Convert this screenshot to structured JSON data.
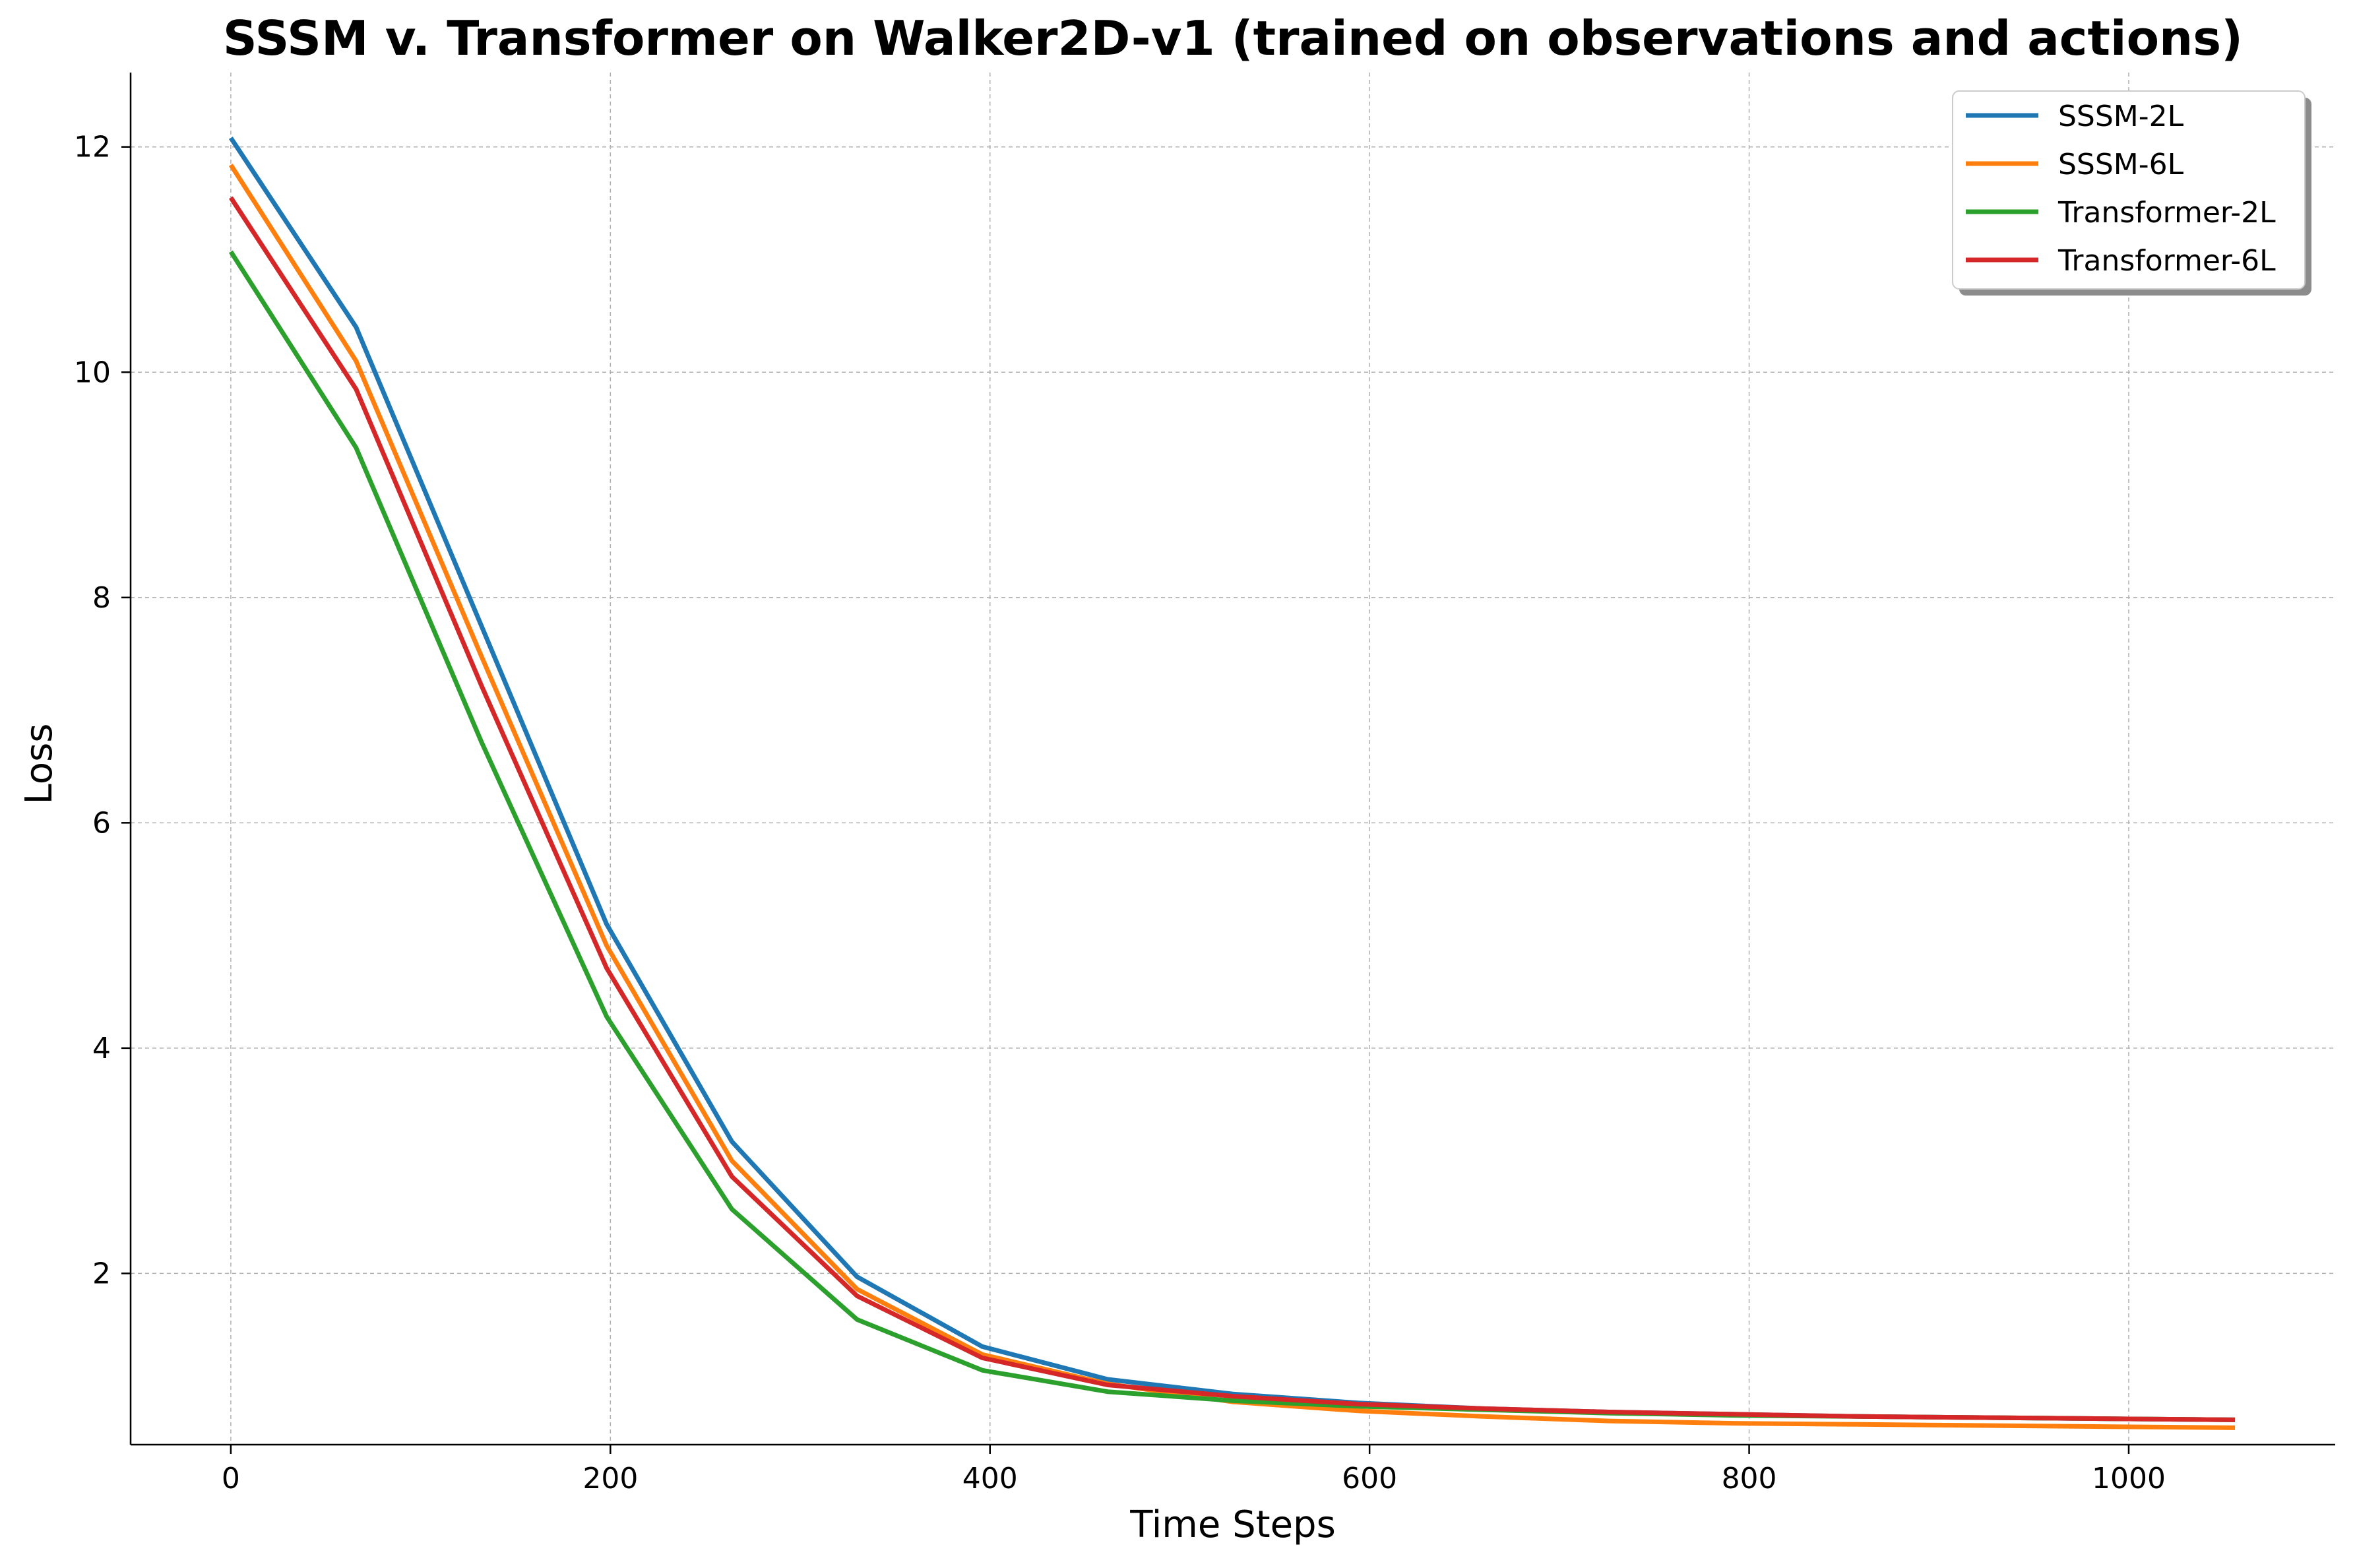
{
  "chart_data": {
    "type": "line",
    "title": "SSSM v. Transformer on Walker2D-v1 (trained on observations and actions)",
    "xlabel": "Time Steps",
    "ylabel": "Loss",
    "xlim": [
      -52.8,
      1108.8
    ],
    "ylim": [
      0.48,
      12.66
    ],
    "xticks": [
      0,
      200,
      400,
      600,
      800,
      1000
    ],
    "yticks": [
      2,
      4,
      6,
      8,
      10,
      12
    ],
    "grid": true,
    "legend_position": "top-right",
    "x": [
      0,
      66,
      132,
      198,
      264,
      330,
      396,
      462,
      528,
      594,
      660,
      726,
      792,
      858,
      924,
      990,
      1056
    ],
    "series": [
      {
        "name": "SSSM-2L",
        "color": "#1f77b4",
        "values": [
          12.08,
          10.4,
          7.75,
          5.1,
          3.17,
          1.97,
          1.35,
          1.06,
          0.93,
          0.85,
          0.8,
          0.77,
          0.75,
          0.73,
          0.72,
          0.71,
          0.7
        ]
      },
      {
        "name": "SSSM-6L",
        "color": "#ff7f0e",
        "values": [
          11.84,
          10.1,
          7.48,
          4.91,
          3.0,
          1.86,
          1.28,
          1.02,
          0.86,
          0.78,
          0.73,
          0.69,
          0.67,
          0.66,
          0.65,
          0.64,
          0.63
        ]
      },
      {
        "name": "Transformer-2L",
        "color": "#2ca02c",
        "values": [
          11.07,
          9.33,
          6.72,
          4.28,
          2.57,
          1.59,
          1.14,
          0.95,
          0.87,
          0.82,
          0.79,
          0.76,
          0.74,
          0.73,
          0.72,
          0.71,
          0.7
        ]
      },
      {
        "name": "Transformer-6L",
        "color": "#d62728",
        "values": [
          11.55,
          9.85,
          7.22,
          4.71,
          2.86,
          1.8,
          1.25,
          1.01,
          0.91,
          0.84,
          0.8,
          0.77,
          0.75,
          0.73,
          0.72,
          0.71,
          0.7
        ]
      }
    ]
  }
}
